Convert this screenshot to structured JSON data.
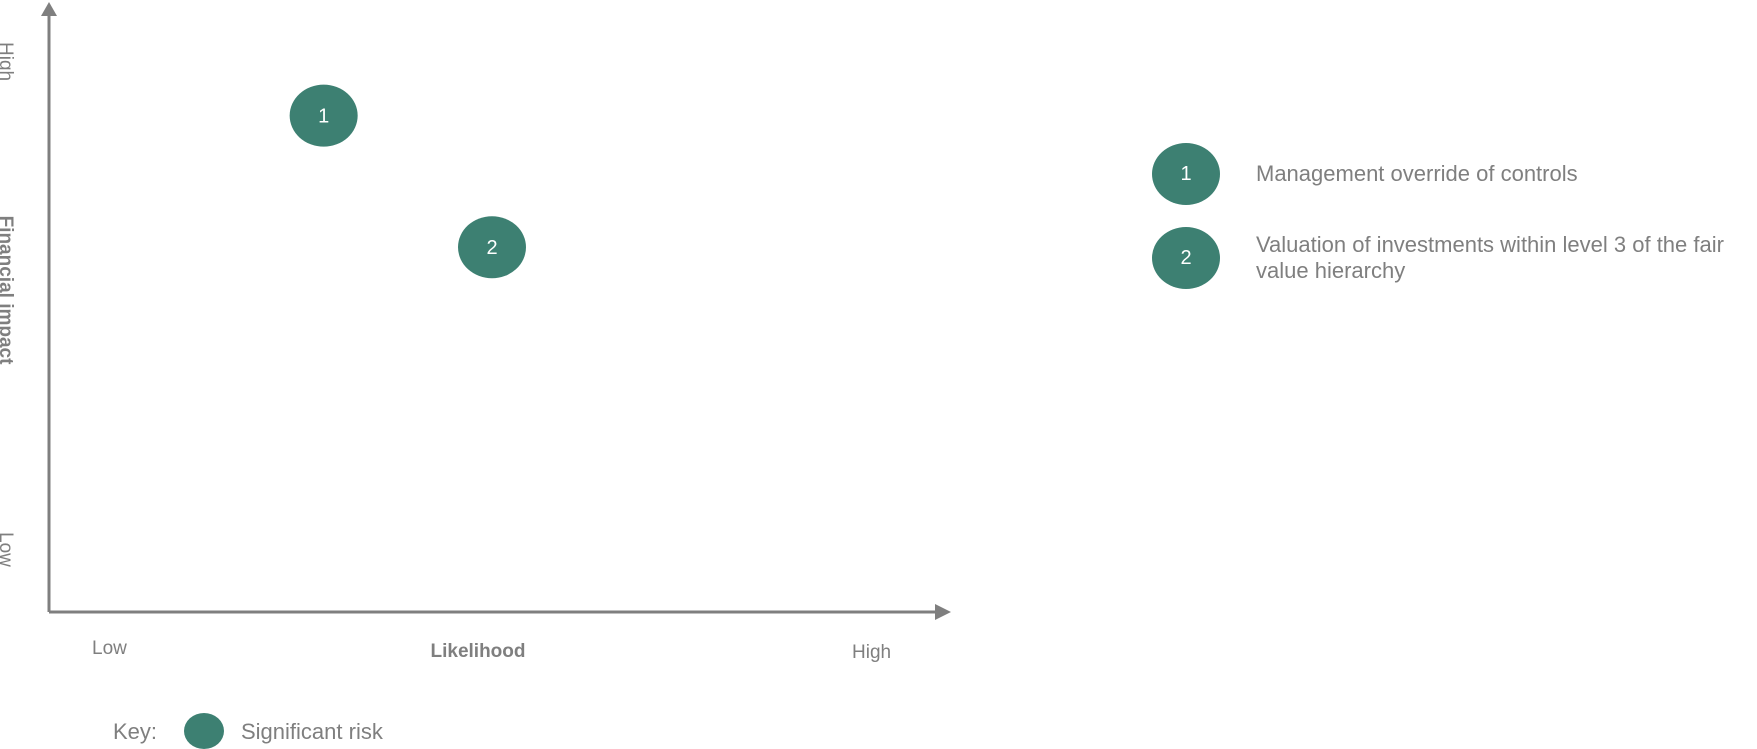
{
  "colors": {
    "risk": "#3d8072",
    "axis": "#7f7f7f",
    "text": "#7f7f7f"
  },
  "chart_data": {
    "type": "scatter",
    "title": "",
    "xlabel": "Likelihood",
    "ylabel": "Financial impact",
    "x_tick_labels": {
      "low": "Low",
      "high": "High"
    },
    "y_tick_labels": {
      "low": "Low",
      "high": "High"
    },
    "xlim": [
      0,
      1
    ],
    "ylim": [
      0,
      1
    ],
    "grid": false,
    "points": [
      {
        "label": "1",
        "x": 0.31,
        "y": 0.83,
        "category": "Significant risk"
      },
      {
        "label": "2",
        "x": 0.5,
        "y": 0.61,
        "category": "Significant risk"
      }
    ]
  },
  "legend": {
    "items": [
      {
        "number": "1",
        "text": "Management override of controls"
      },
      {
        "number": "2",
        "text": "Valuation of investments within level 3 of the fair value hierarchy"
      }
    ]
  },
  "key": {
    "label": "Key:",
    "text": "Significant risk"
  }
}
